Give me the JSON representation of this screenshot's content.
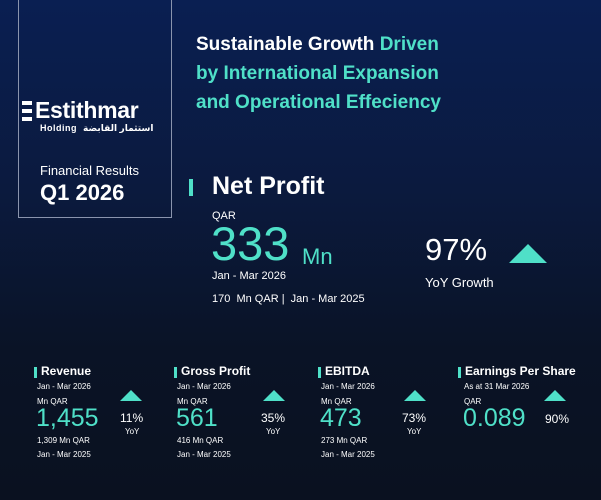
{
  "brand": {
    "name": "Estithmar",
    "subtitle": "Holding",
    "subtitle_arabic": "استثمار القابضة"
  },
  "report": {
    "label": "Financial Results",
    "period": "Q1 2026"
  },
  "headline": {
    "line1_white": "Sustainable Growth ",
    "line1_teal": "Driven",
    "line2": "by International Expansion",
    "line3": "and Operational Effeciency"
  },
  "net_profit": {
    "title": "Net Profit",
    "currency": "QAR",
    "value": "333",
    "unit": "Mn",
    "period": "Jan - Mar 2026",
    "previous": "170  Mn QAR |  Jan - Mar 2025",
    "yoy_value": "97%",
    "yoy_label": "YoY Growth"
  },
  "kpis": [
    {
      "title": "Revenue",
      "period": "Jan - Mar 2026",
      "unit": "Mn QAR",
      "value": "1,455",
      "previous": "1,309 Mn QAR",
      "previous_period": "Jan - Mar 2025",
      "pct": "11%",
      "yoy": "YoY"
    },
    {
      "title": "Gross Profit",
      "period": "Jan - Mar 2026",
      "unit": "Mn QAR",
      "value": "561",
      "previous": "416 Mn QAR",
      "previous_period": "Jan - Mar 2025",
      "pct": "35%",
      "yoy": "YoY"
    },
    {
      "title": "EBITDA",
      "period": "Jan - Mar 2026",
      "unit": "Mn QAR",
      "value": "473",
      "previous": "273 Mn QAR",
      "previous_period": "Jan - Mar 2025",
      "pct": "73%",
      "yoy": "YoY"
    },
    {
      "title": "Earnings Per Share",
      "period": "As at 31 Mar 2026",
      "unit": "QAR",
      "value": "0.089",
      "pct": "90%"
    }
  ],
  "colors": {
    "accent": "#4fe0c8",
    "background_top": "#0a1f52",
    "background_bottom": "#0a1120"
  }
}
